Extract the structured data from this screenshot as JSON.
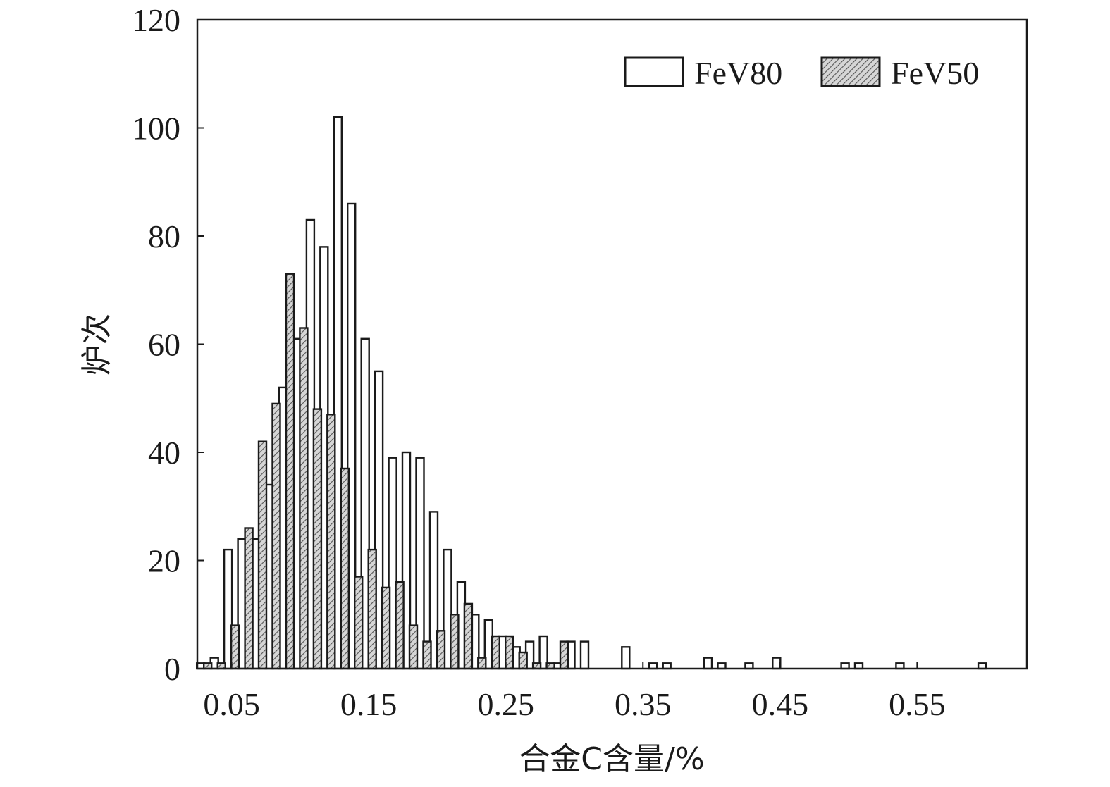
{
  "chart_data": {
    "type": "bar",
    "xlabel": "合金C含量/%",
    "ylabel": "炉次",
    "xlim": [
      0.025,
      0.63
    ],
    "ylim": [
      0,
      120
    ],
    "x_ticks": [
      {
        "value": 0.05,
        "label": "0.05"
      },
      {
        "value": 0.15,
        "label": "0.15"
      },
      {
        "value": 0.25,
        "label": "0.25"
      },
      {
        "value": 0.35,
        "label": "0.35"
      },
      {
        "value": 0.45,
        "label": "0.45"
      },
      {
        "value": 0.55,
        "label": "0.55"
      }
    ],
    "y_ticks": [
      {
        "value": 0,
        "label": "0"
      },
      {
        "value": 20,
        "label": "20"
      },
      {
        "value": 40,
        "label": "40"
      },
      {
        "value": 60,
        "label": "60"
      },
      {
        "value": 80,
        "label": "80"
      },
      {
        "value": 100,
        "label": "100"
      },
      {
        "value": 120,
        "label": "120"
      }
    ],
    "grid": false,
    "legend_position": "top-right",
    "series": [
      {
        "name": "FeV80",
        "style": "open",
        "color": "#ffffff",
        "x": [
          0.03,
          0.04,
          0.05,
          0.06,
          0.07,
          0.08,
          0.09,
          0.1,
          0.11,
          0.12,
          0.13,
          0.14,
          0.15,
          0.16,
          0.17,
          0.18,
          0.19,
          0.2,
          0.21,
          0.22,
          0.23,
          0.24,
          0.25,
          0.26,
          0.27,
          0.28,
          0.29,
          0.3,
          0.31,
          0.34,
          0.36,
          0.37,
          0.4,
          0.41,
          0.43,
          0.45,
          0.5,
          0.51,
          0.54,
          0.6
        ],
        "values": [
          1,
          2,
          22,
          24,
          24,
          34,
          52,
          61,
          83,
          78,
          102,
          86,
          61,
          55,
          39,
          40,
          39,
          29,
          22,
          16,
          10,
          9,
          6,
          4,
          5,
          6,
          1,
          5,
          5,
          4,
          1,
          1,
          2,
          1,
          1,
          2,
          1,
          1,
          1,
          1
        ]
      },
      {
        "name": "FeV50",
        "style": "hatched",
        "color": "#c8c8c8",
        "x": [
          0.03,
          0.04,
          0.05,
          0.06,
          0.07,
          0.08,
          0.09,
          0.1,
          0.11,
          0.12,
          0.13,
          0.14,
          0.15,
          0.16,
          0.17,
          0.18,
          0.19,
          0.2,
          0.21,
          0.22,
          0.23,
          0.24,
          0.25,
          0.26,
          0.27,
          0.28,
          0.29
        ],
        "values": [
          1,
          1,
          8,
          26,
          42,
          49,
          73,
          63,
          48,
          47,
          37,
          17,
          22,
          15,
          16,
          8,
          5,
          7,
          10,
          12,
          2,
          6,
          6,
          3,
          1,
          1,
          5
        ]
      }
    ]
  }
}
